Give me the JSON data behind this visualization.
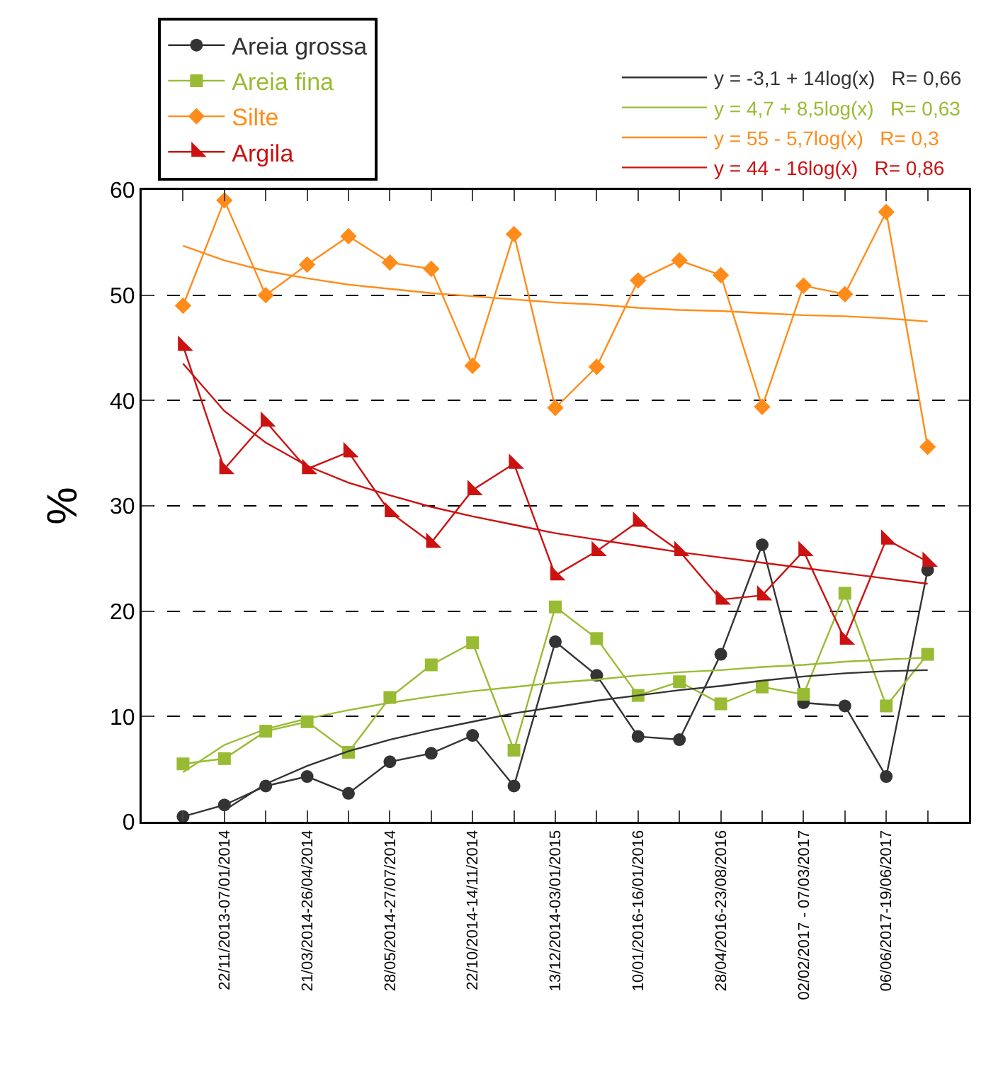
{
  "chart_data": {
    "type": "line",
    "ylabel": "%",
    "legend": "top",
    "grid": "y",
    "ylim": [
      0,
      60
    ],
    "yticks": [
      0,
      10,
      20,
      30,
      40,
      50,
      60
    ],
    "categories": [
      null,
      "22/11/2013-07/01/2014",
      null,
      "21/03/2014-26/04/2014",
      null,
      "28/05/2014-27/07/2014",
      null,
      "22/10/2014-14/11/2014",
      null,
      "13/12/2014-03/01/2015",
      null,
      "10/01/2016-16/01/2016",
      null,
      "28/04/2016-23/08/2016",
      null,
      "02/02/2017 - 07/03/2017",
      null,
      "06/06/2017-19/06/2017",
      null
    ],
    "series": [
      {
        "name": "Areia grossa",
        "color": "#333333",
        "marker": "circle",
        "values": [
          0.5,
          1.6,
          3.4,
          4.3,
          2.7,
          5.7,
          6.5,
          8.2,
          3.4,
          17.1,
          13.9,
          8.1,
          7.8,
          15.9,
          26.3,
          11.3,
          11.0,
          4.3,
          23.9
        ]
      },
      {
        "name": "Areia fina",
        "color": "#99bb33",
        "marker": "square",
        "values": [
          5.5,
          6.0,
          8.6,
          9.5,
          6.6,
          11.8,
          14.9,
          17.0,
          6.8,
          20.4,
          17.4,
          12.0,
          13.3,
          11.2,
          12.8,
          12.1,
          21.7,
          11.0,
          15.9
        ]
      },
      {
        "name": "Silte",
        "color": "#ff8c1a",
        "marker": "diamond",
        "values": [
          49.0,
          59.0,
          50.0,
          52.9,
          55.6,
          53.1,
          52.5,
          43.3,
          55.8,
          39.3,
          43.2,
          51.4,
          53.3,
          51.9,
          39.4,
          50.9,
          50.1,
          57.9,
          35.6
        ]
      },
      {
        "name": "Argila",
        "color": "#cc1111",
        "marker": "triangle",
        "values": [
          45.2,
          33.5,
          38.0,
          33.5,
          35.1,
          29.4,
          26.5,
          31.5,
          34.0,
          23.4,
          25.7,
          28.5,
          25.7,
          21.1,
          21.5,
          25.7,
          17.3,
          26.8,
          24.7
        ]
      },
      {
        "name": "y = -3,1 + 14log(x)   R= 0,66",
        "color": "#333333",
        "marker": "none",
        "values": [
          null,
          1.1,
          3.6,
          5.3,
          6.7,
          7.8,
          8.7,
          9.5,
          10.3,
          10.9,
          11.5,
          12.0,
          12.5,
          12.9,
          13.4,
          13.8,
          14.1,
          14.3,
          14.4
        ]
      },
      {
        "name": "y = 4,7 + 8,5log(x)   R= 0,63",
        "color": "#99bb33",
        "marker": "none",
        "values": [
          4.7,
          7.3,
          8.8,
          9.8,
          10.6,
          11.3,
          11.9,
          12.4,
          12.8,
          13.2,
          13.5,
          13.9,
          14.2,
          14.4,
          14.7,
          14.9,
          15.2,
          15.4,
          15.6
        ]
      },
      {
        "name": "y = 55 - 5,7log(x)   R= 0,3",
        "color": "#ff8c1a",
        "marker": "none",
        "values": [
          54.7,
          53.3,
          52.3,
          51.6,
          51.0,
          50.6,
          50.2,
          49.9,
          49.6,
          49.3,
          49.1,
          48.8,
          48.6,
          48.5,
          48.3,
          48.1,
          48.0,
          47.8,
          47.5
        ]
      },
      {
        "name": "y = 44 - 16log(x)   R= 0,86",
        "color": "#cc1111",
        "marker": "none",
        "values": [
          43.5,
          39.0,
          36.0,
          33.8,
          32.2,
          31.0,
          29.9,
          29.0,
          28.2,
          27.4,
          26.8,
          26.2,
          25.6,
          25.1,
          24.6,
          24.1,
          23.6,
          23.1,
          22.6
        ]
      }
    ]
  }
}
